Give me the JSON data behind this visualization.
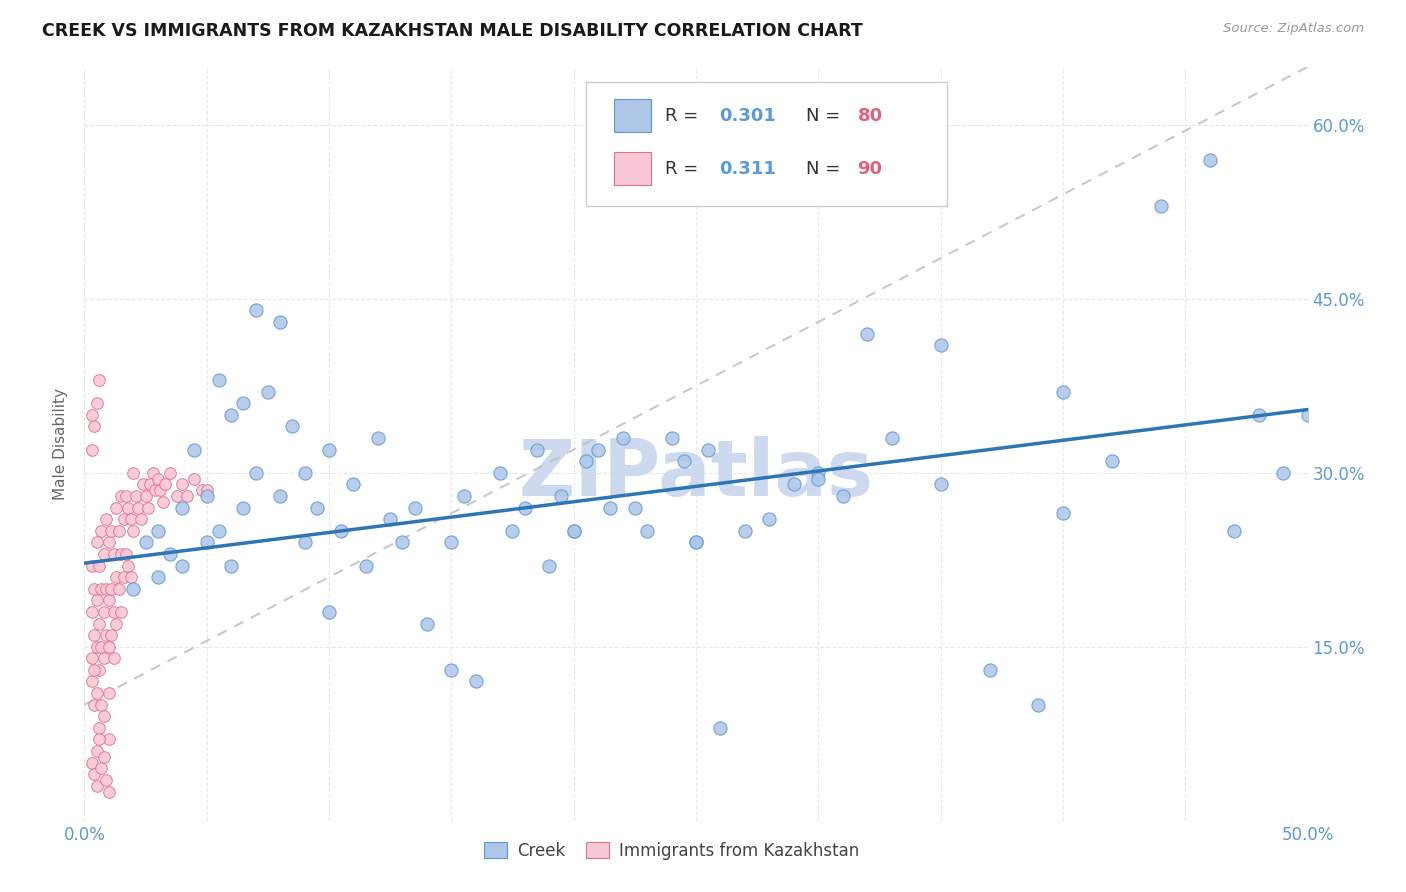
{
  "title": "CREEK VS IMMIGRANTS FROM KAZAKHSTAN MALE DISABILITY CORRELATION CHART",
  "source": "Source: ZipAtlas.com",
  "ylabel": "Male Disability",
  "xlim": [
    0.0,
    0.5
  ],
  "ylim": [
    0.0,
    0.65
  ],
  "creek_color": "#aec6e8",
  "creek_edge_color": "#5b9bd5",
  "kazakhstan_color": "#f9c8d4",
  "kazakhstan_edge_color": "#e07090",
  "trend_line_color": "#2e75b6",
  "dashed_line_color": "#c0c0c0",
  "tick_color": "#5b9bd5",
  "legend_R1": "0.301",
  "legend_N1": "80",
  "legend_R2": "0.311",
  "legend_N2": "90",
  "creek_scatter_x": [
    0.02,
    0.025,
    0.03,
    0.03,
    0.035,
    0.04,
    0.04,
    0.045,
    0.05,
    0.05,
    0.055,
    0.055,
    0.06,
    0.06,
    0.065,
    0.065,
    0.07,
    0.07,
    0.075,
    0.08,
    0.08,
    0.085,
    0.09,
    0.09,
    0.095,
    0.1,
    0.1,
    0.105,
    0.11,
    0.115,
    0.12,
    0.125,
    0.13,
    0.135,
    0.14,
    0.15,
    0.155,
    0.16,
    0.17,
    0.175,
    0.18,
    0.185,
    0.19,
    0.195,
    0.2,
    0.205,
    0.21,
    0.215,
    0.22,
    0.225,
    0.23,
    0.24,
    0.245,
    0.25,
    0.255,
    0.26,
    0.27,
    0.28,
    0.29,
    0.3,
    0.31,
    0.32,
    0.33,
    0.35,
    0.37,
    0.39,
    0.4,
    0.42,
    0.44,
    0.46,
    0.47,
    0.48,
    0.49,
    0.5,
    0.15,
    0.2,
    0.25,
    0.3,
    0.35,
    0.4
  ],
  "creek_scatter_y": [
    0.2,
    0.24,
    0.21,
    0.25,
    0.23,
    0.27,
    0.22,
    0.32,
    0.28,
    0.24,
    0.38,
    0.25,
    0.35,
    0.22,
    0.36,
    0.27,
    0.44,
    0.3,
    0.37,
    0.43,
    0.28,
    0.34,
    0.3,
    0.24,
    0.27,
    0.32,
    0.18,
    0.25,
    0.29,
    0.22,
    0.33,
    0.26,
    0.24,
    0.27,
    0.17,
    0.24,
    0.28,
    0.12,
    0.3,
    0.25,
    0.27,
    0.32,
    0.22,
    0.28,
    0.25,
    0.31,
    0.32,
    0.27,
    0.33,
    0.27,
    0.25,
    0.33,
    0.31,
    0.24,
    0.32,
    0.08,
    0.25,
    0.26,
    0.29,
    0.3,
    0.28,
    0.42,
    0.33,
    0.29,
    0.13,
    0.1,
    0.37,
    0.31,
    0.53,
    0.57,
    0.25,
    0.35,
    0.3,
    0.35,
    0.13,
    0.25,
    0.24,
    0.295,
    0.41,
    0.265
  ],
  "kaz_scatter_x": [
    0.003,
    0.003,
    0.003,
    0.004,
    0.004,
    0.004,
    0.005,
    0.005,
    0.005,
    0.005,
    0.005,
    0.006,
    0.006,
    0.006,
    0.006,
    0.007,
    0.007,
    0.007,
    0.007,
    0.008,
    0.008,
    0.008,
    0.008,
    0.009,
    0.009,
    0.009,
    0.01,
    0.01,
    0.01,
    0.01,
    0.01,
    0.011,
    0.011,
    0.011,
    0.012,
    0.012,
    0.012,
    0.013,
    0.013,
    0.013,
    0.014,
    0.014,
    0.015,
    0.015,
    0.015,
    0.016,
    0.016,
    0.017,
    0.017,
    0.018,
    0.018,
    0.019,
    0.019,
    0.02,
    0.02,
    0.021,
    0.022,
    0.023,
    0.024,
    0.025,
    0.026,
    0.027,
    0.028,
    0.029,
    0.03,
    0.031,
    0.032,
    0.033,
    0.035,
    0.038,
    0.04,
    0.042,
    0.045,
    0.048,
    0.05,
    0.003,
    0.004,
    0.005,
    0.006,
    0.007,
    0.008,
    0.009,
    0.01,
    0.003,
    0.004,
    0.005,
    0.006,
    0.003,
    0.003,
    0.004
  ],
  "kaz_scatter_y": [
    0.22,
    0.18,
    0.14,
    0.2,
    0.16,
    0.1,
    0.24,
    0.19,
    0.15,
    0.11,
    0.06,
    0.22,
    0.17,
    0.13,
    0.08,
    0.25,
    0.2,
    0.15,
    0.1,
    0.23,
    0.18,
    0.14,
    0.09,
    0.26,
    0.2,
    0.16,
    0.24,
    0.19,
    0.15,
    0.11,
    0.07,
    0.25,
    0.2,
    0.16,
    0.23,
    0.18,
    0.14,
    0.27,
    0.21,
    0.17,
    0.25,
    0.2,
    0.28,
    0.23,
    0.18,
    0.26,
    0.21,
    0.28,
    0.23,
    0.27,
    0.22,
    0.26,
    0.21,
    0.3,
    0.25,
    0.28,
    0.27,
    0.26,
    0.29,
    0.28,
    0.27,
    0.29,
    0.3,
    0.285,
    0.295,
    0.285,
    0.275,
    0.29,
    0.3,
    0.28,
    0.29,
    0.28,
    0.295,
    0.285,
    0.285,
    0.05,
    0.04,
    0.03,
    0.07,
    0.045,
    0.055,
    0.035,
    0.025,
    0.32,
    0.34,
    0.36,
    0.38,
    0.35,
    0.12,
    0.13
  ],
  "watermark": "ZIPatlas",
  "watermark_color": "#ccd9ee",
  "background_color": "#ffffff",
  "grid_color": "#e8e8e8"
}
